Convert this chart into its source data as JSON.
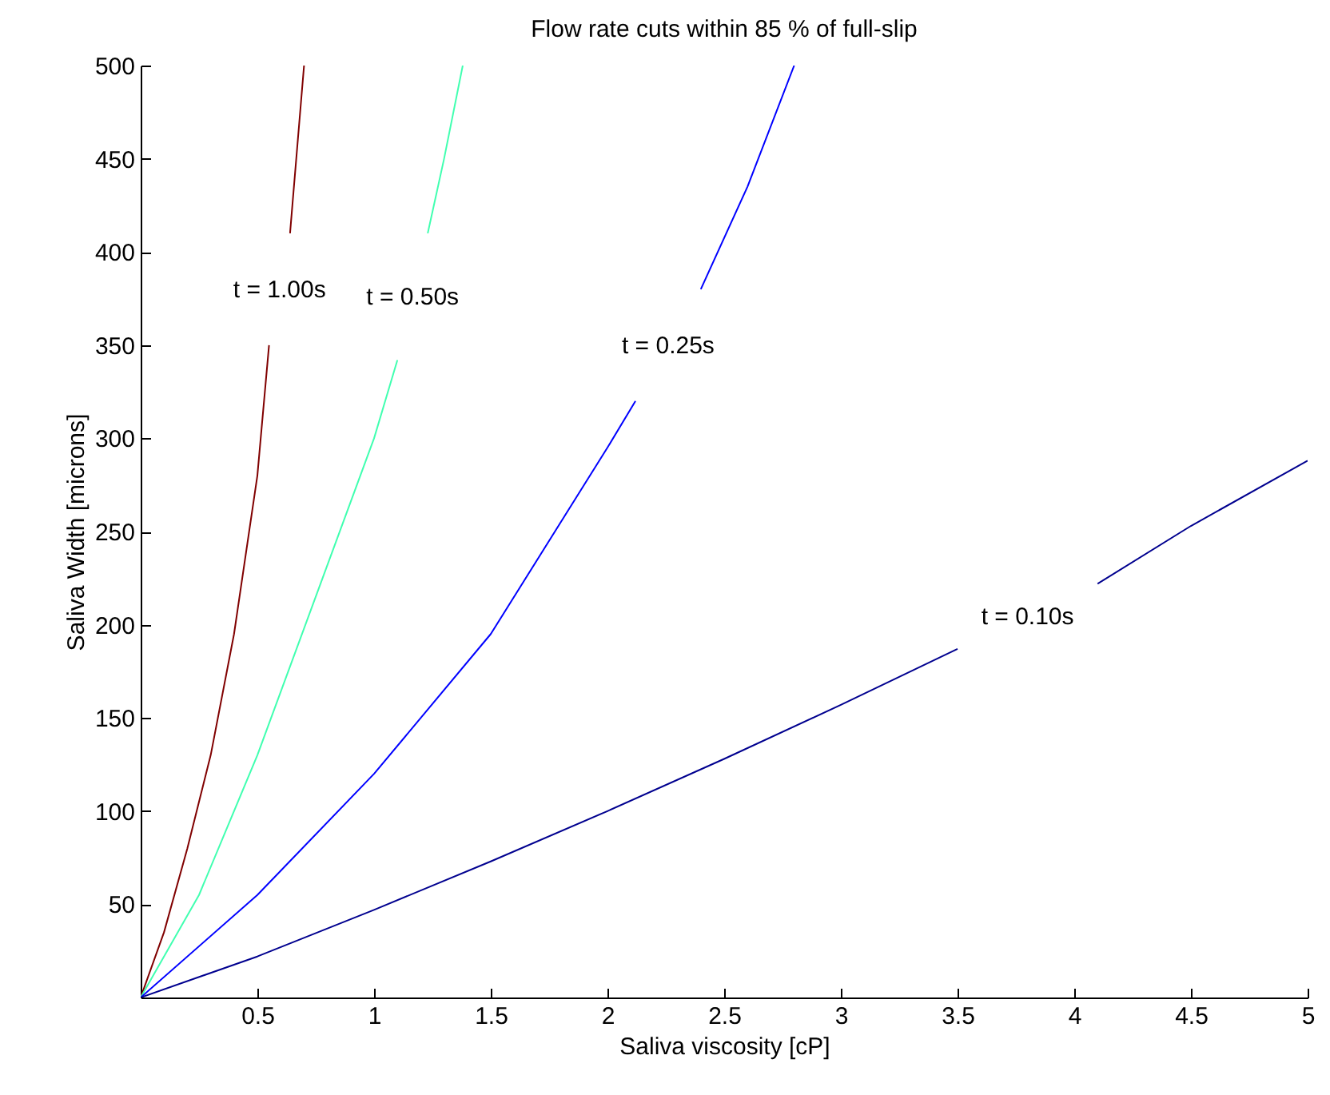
{
  "chart_data": {
    "type": "line",
    "title": "Flow rate cuts within 85 % of full-slip",
    "xlabel": "Saliva viscosity [cP]",
    "ylabel": "Saliva Width [microns]",
    "series": [
      {
        "name": "t = 1.00s",
        "color": "#800000",
        "x": [
          0,
          0.1,
          0.2,
          0.3,
          0.4,
          0.5,
          0.55,
          0.6,
          0.64,
          0.7
        ],
        "values": [
          0,
          35,
          80,
          130,
          195,
          280,
          350,
          null,
          410,
          500
        ]
      },
      {
        "name": "t = 0.50s",
        "color": "#40ffb0",
        "x": [
          0,
          0.25,
          0.5,
          0.75,
          1.0,
          1.1,
          1.16,
          1.23,
          1.3,
          1.38
        ],
        "values": [
          0,
          55,
          130,
          215,
          300,
          342,
          null,
          410,
          450,
          500
        ]
      },
      {
        "name": "t = 0.25s",
        "color": "#0000ff",
        "x": [
          0,
          0.5,
          1,
          1.5,
          2,
          2.12,
          2.25,
          2.4,
          2.6,
          2.8
        ],
        "values": [
          0,
          55,
          120,
          195,
          295,
          320,
          null,
          380,
          435,
          500
        ]
      },
      {
        "name": "t = 0.10s",
        "color": "#00008f",
        "x": [
          0,
          0.5,
          1,
          1.5,
          2,
          2.5,
          3,
          3.5,
          3.8,
          4.1,
          4.5,
          5
        ],
        "values": [
          0,
          22,
          47,
          73,
          100,
          128,
          157,
          187,
          null,
          222,
          253,
          288
        ]
      }
    ],
    "xlim": [
      0,
      5
    ],
    "xticks": [
      0.5,
      1,
      1.5,
      2,
      2.5,
      3,
      3.5,
      4,
      4.5,
      5
    ],
    "ylim": [
      0,
      500
    ],
    "yticks": [
      50,
      100,
      150,
      200,
      250,
      300,
      350,
      400,
      450,
      500
    ],
    "grid": false,
    "legend": false
  }
}
